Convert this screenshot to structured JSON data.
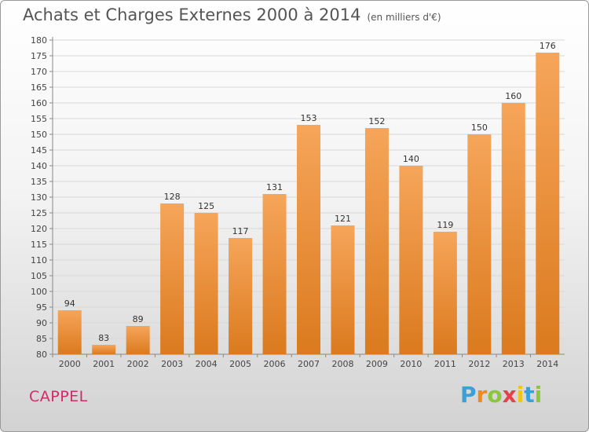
{
  "chart_data": {
    "type": "bar",
    "title": "Achats et Charges Externes 2000 à 2014",
    "unit": "(en milliers d'€)",
    "categories": [
      "2000",
      "2001",
      "2002",
      "2003",
      "2004",
      "2005",
      "2006",
      "2007",
      "2008",
      "2009",
      "2010",
      "2011",
      "2012",
      "2013",
      "2014"
    ],
    "values": [
      94,
      83,
      89,
      128,
      125,
      117,
      131,
      153,
      121,
      152,
      140,
      119,
      150,
      160,
      176
    ],
    "ylim": [
      80,
      180
    ],
    "yticks": [
      80,
      85,
      90,
      95,
      100,
      105,
      110,
      115,
      120,
      125,
      130,
      135,
      140,
      145,
      150,
      155,
      160,
      165,
      170,
      175,
      180
    ],
    "grid": true,
    "colors": {
      "bar_light": "#f6a55a",
      "bar_dark": "#db7a1e",
      "grid": "#d8d8d8"
    }
  },
  "commune": "CAPPEL",
  "logo": {
    "letters": [
      "P",
      "r",
      "o",
      "x",
      "i",
      "t",
      "i"
    ],
    "colors": [
      "#3aa0d8",
      "#f08a1c",
      "#8cc63e",
      "#e8404a",
      "#f0c419",
      "#3aa0d8",
      "#8cc63e"
    ]
  }
}
